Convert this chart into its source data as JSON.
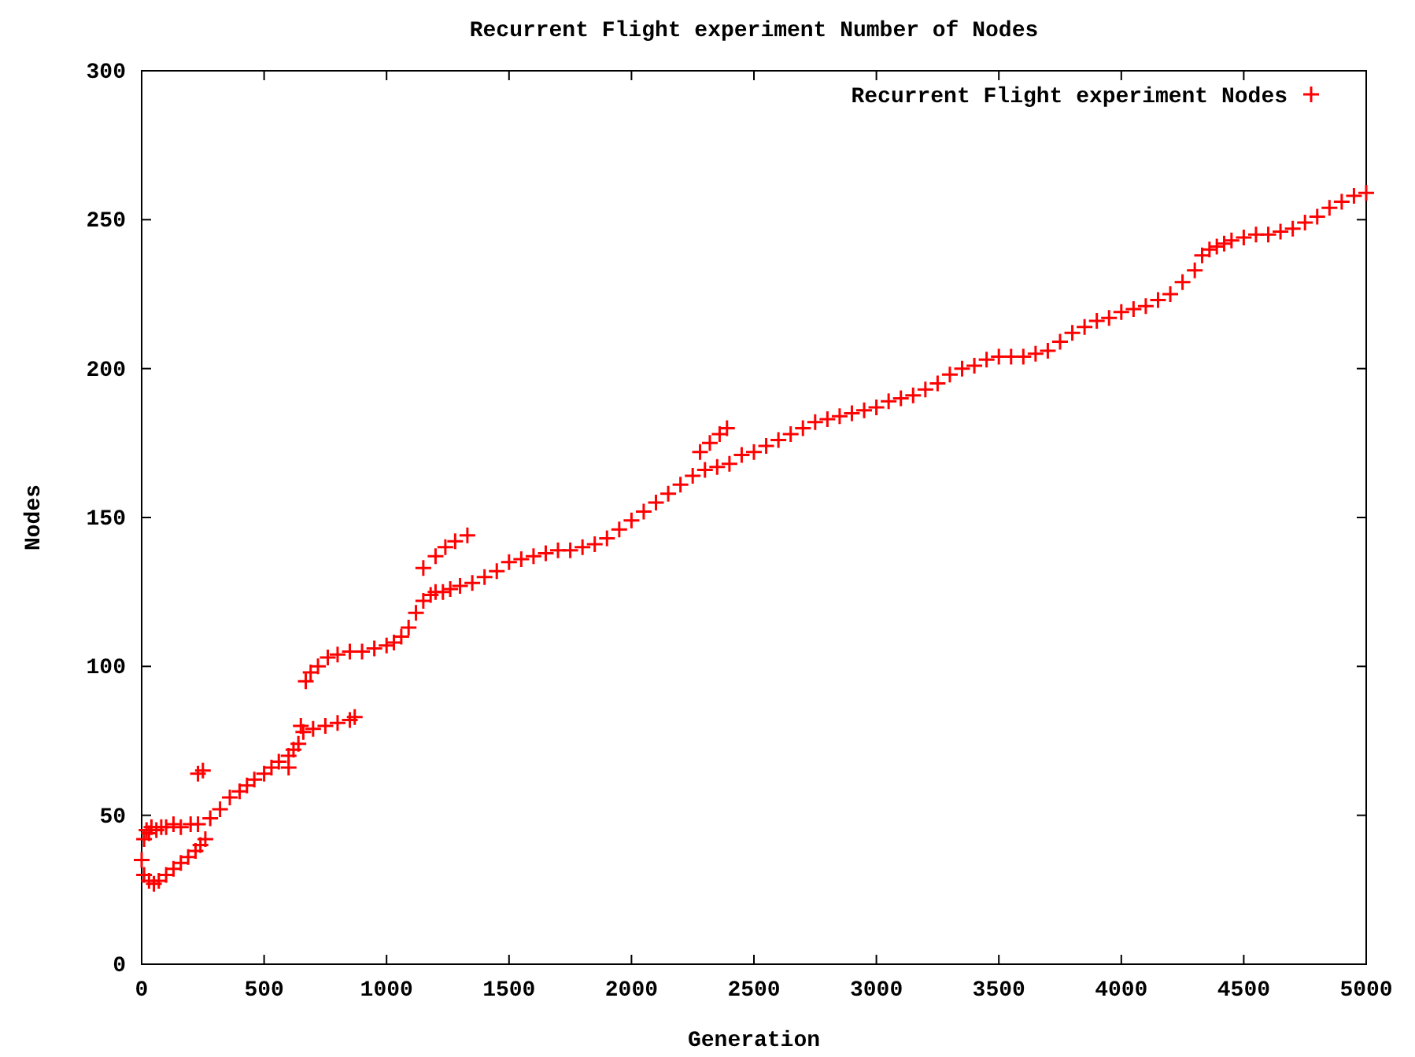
{
  "chart_data": {
    "type": "scatter",
    "title": "Recurrent Flight experiment Number of Nodes",
    "xlabel": "Generation",
    "ylabel": "Nodes",
    "xlim": [
      0,
      5000
    ],
    "ylim": [
      0,
      300
    ],
    "xticks": [
      0,
      500,
      1000,
      1500,
      2000,
      2500,
      3000,
      3500,
      4000,
      4500,
      5000
    ],
    "yticks": [
      0,
      50,
      100,
      150,
      200,
      250,
      300
    ],
    "grid": false,
    "legend": "top right",
    "marker": "cross",
    "series": [
      {
        "name": "Recurrent Flight experiment Nodes",
        "color": "#ff0000",
        "x": [
          0,
          10,
          20,
          30,
          40,
          60,
          80,
          100,
          130,
          160,
          200,
          230,
          10,
          30,
          50,
          70,
          100,
          130,
          160,
          190,
          220,
          240,
          260,
          230,
          250,
          280,
          320,
          360,
          400,
          430,
          460,
          500,
          530,
          560,
          600,
          620,
          640,
          660,
          600,
          650,
          700,
          750,
          800,
          850,
          870,
          670,
          690,
          720,
          760,
          800,
          850,
          900,
          950,
          1000,
          1030,
          1060,
          1090,
          1120,
          1150,
          1180,
          1200,
          1230,
          1260,
          1300,
          1150,
          1200,
          1240,
          1280,
          1330,
          1350,
          1400,
          1450,
          1500,
          1550,
          1600,
          1650,
          1700,
          1750,
          1800,
          1850,
          1900,
          1950,
          2000,
          2050,
          2100,
          2150,
          2200,
          2250,
          2300,
          2350,
          2400,
          2280,
          2320,
          2360,
          2390,
          2450,
          2500,
          2550,
          2600,
          2650,
          2700,
          2750,
          2800,
          2850,
          2900,
          2950,
          3000,
          3050,
          3100,
          3150,
          3200,
          3250,
          3300,
          3350,
          3400,
          3450,
          3500,
          3550,
          3600,
          3650,
          3700,
          3750,
          3800,
          3850,
          3900,
          3950,
          4000,
          4050,
          4100,
          4150,
          4200,
          4250,
          4300,
          4330,
          4360,
          4390,
          4420,
          4450,
          4500,
          4550,
          4600,
          4650,
          4700,
          4750,
          4800,
          4850,
          4900,
          4950,
          5000
        ],
        "values": [
          35,
          42,
          45,
          44,
          46,
          45,
          46,
          46,
          47,
          46,
          47,
          47,
          30,
          28,
          27,
          28,
          30,
          32,
          34,
          36,
          38,
          40,
          42,
          64,
          65,
          49,
          52,
          56,
          58,
          60,
          62,
          64,
          66,
          68,
          70,
          72,
          74,
          78,
          66,
          80,
          79,
          80,
          81,
          82,
          83,
          95,
          98,
          100,
          103,
          104,
          105,
          105,
          106,
          107,
          108,
          110,
          113,
          118,
          122,
          124,
          125,
          125,
          126,
          127,
          133,
          137,
          140,
          142,
          144,
          128,
          130,
          132,
          135,
          136,
          137,
          138,
          139,
          139,
          140,
          141,
          143,
          146,
          149,
          152,
          155,
          158,
          161,
          164,
          166,
          167,
          168,
          172,
          175,
          178,
          180,
          171,
          172,
          174,
          176,
          178,
          180,
          182,
          183,
          184,
          185,
          186,
          187,
          189,
          190,
          191,
          193,
          195,
          198,
          200,
          201,
          203,
          204,
          204,
          204,
          205,
          206,
          209,
          212,
          214,
          216,
          217,
          219,
          220,
          221,
          223,
          225,
          229,
          233,
          238,
          240,
          241,
          242,
          243,
          244,
          245,
          245,
          246,
          247,
          249,
          251,
          254,
          256,
          258,
          259
        ]
      }
    ]
  }
}
